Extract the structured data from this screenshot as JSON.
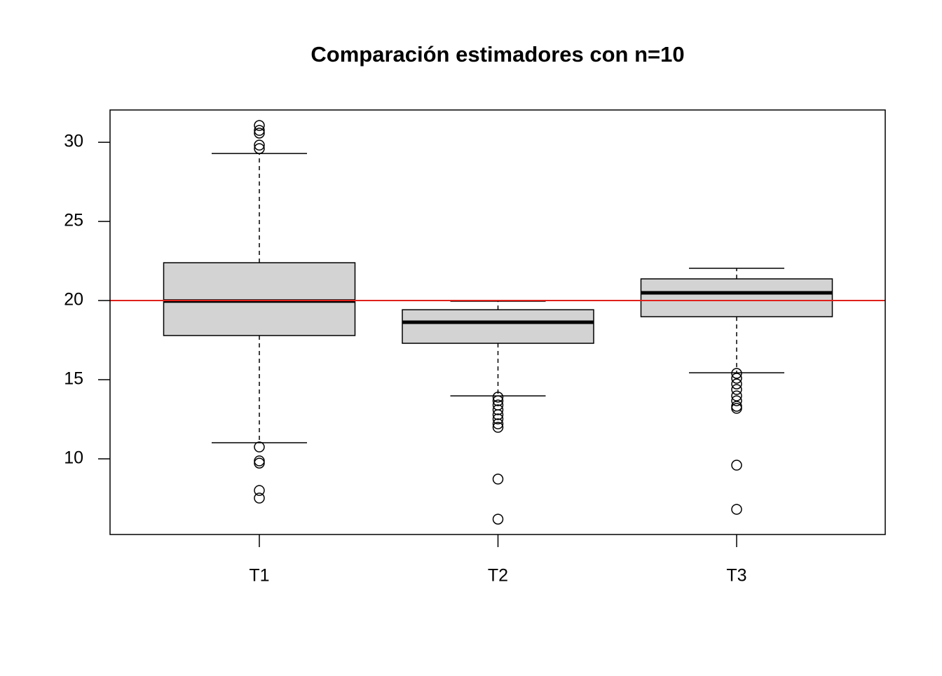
{
  "chart_data": {
    "type": "boxplot",
    "title": "Comparación estimadores con n=10",
    "categories": [
      "T1",
      "T2",
      "T3"
    ],
    "whisker_low": [
      11.02,
      13.98,
      15.44
    ],
    "q1": [
      17.79,
      17.3,
      18.98
    ],
    "median": [
      19.97,
      18.63,
      20.49
    ],
    "q3": [
      22.39,
      19.42,
      21.37
    ],
    "whisker_high": [
      29.29,
      19.96,
      22.04
    ],
    "outliers": [
      [
        31.06,
        30.75,
        30.58,
        29.82,
        29.6,
        10.75,
        9.87,
        9.73,
        8.0,
        7.52
      ],
      [
        13.9,
        13.67,
        13.4,
        13.1,
        12.79,
        12.52,
        12.21,
        11.99,
        8.72,
        6.19
      ],
      [
        15.4,
        15.09,
        14.73,
        14.38,
        13.98,
        13.67,
        13.32,
        13.19,
        9.6,
        6.81
      ]
    ],
    "color": "#d3d3d3",
    "hline": 20,
    "hline_color": "#e0201b",
    "ylim": [
      5.22,
      32.04
    ],
    "yticks": [
      10,
      15,
      20,
      25,
      30
    ]
  }
}
